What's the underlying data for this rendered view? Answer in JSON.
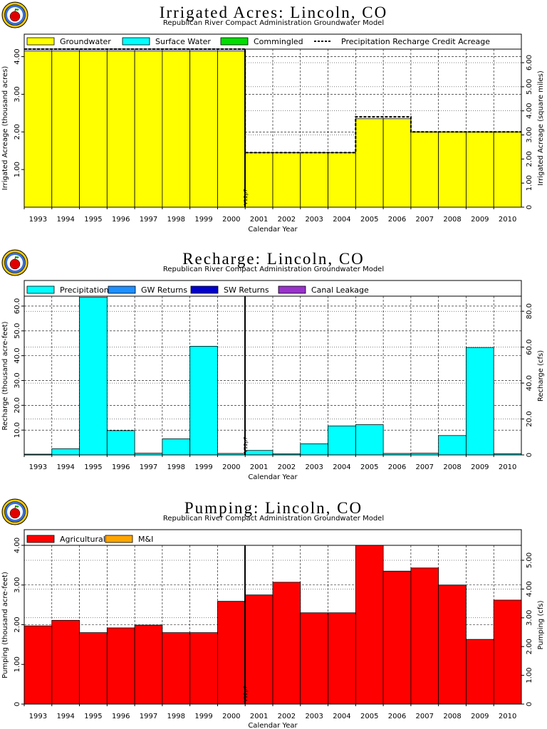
{
  "panels": [
    {
      "title": "Irrigated Acres: Lincoln, CO",
      "subtitle": "Republican River Compact Administration Groundwater Model",
      "marker_label": "V12p7"
    },
    {
      "title": "Recharge: Lincoln, CO",
      "subtitle": "Republican River Compact Administration Groundwater Model",
      "marker_label": "V12p7"
    },
    {
      "title": "Pumping: Lincoln, CO",
      "subtitle": "Republican River Compact Administration Groundwater Model",
      "marker_label": "V12p7"
    }
  ],
  "chart_data": [
    {
      "type": "bar",
      "stacked": true,
      "categories": [
        "1993",
        "1994",
        "1995",
        "1996",
        "1997",
        "1998",
        "1999",
        "2000",
        "2001",
        "2002",
        "2003",
        "2004",
        "2005",
        "2006",
        "2007",
        "2008",
        "2009",
        "2010"
      ],
      "series": [
        {
          "name": "Groundwater",
          "color": "#ffff00",
          "values": [
            4.15,
            4.15,
            4.15,
            4.15,
            4.15,
            4.15,
            4.15,
            4.15,
            1.45,
            1.45,
            1.45,
            1.45,
            2.35,
            2.35,
            2.0,
            2.0,
            2.0,
            2.0
          ]
        },
        {
          "name": "Surface Water",
          "color": "#00ffff",
          "values": [
            0,
            0,
            0,
            0,
            0,
            0,
            0,
            0,
            0,
            0,
            0,
            0,
            0,
            0,
            0,
            0,
            0,
            0
          ]
        },
        {
          "name": "Commingled",
          "color": "#00dd00",
          "values": [
            0,
            0,
            0,
            0,
            0,
            0,
            0,
            0,
            0,
            0,
            0,
            0,
            0,
            0,
            0,
            0,
            0,
            0
          ]
        }
      ],
      "line_series": {
        "name": "Precipitation Recharge Credit Acreage",
        "style": "dashed",
        "values": [
          4.2,
          4.2,
          4.2,
          4.2,
          4.2,
          4.2,
          4.2,
          4.2,
          1.45,
          1.45,
          1.45,
          1.45,
          2.4,
          2.4,
          2.0,
          2.0,
          2.0,
          2.0
        ]
      },
      "xlabel": "Calendar Year",
      "ylabel": "Irrigated Acreage (thousand acres)",
      "y2label": "Irrigated Acreage (square miles)",
      "ylim": [
        0,
        4.2
      ],
      "yticks": [
        "1.00",
        "2.00",
        "3.00",
        "4.00"
      ],
      "yticks_values": [
        1,
        2,
        3,
        4
      ],
      "y2lim": [
        0,
        6.5625
      ],
      "y2ticks": [
        "0",
        "1.00",
        "2.00",
        "3.00",
        "4.00",
        "5.00",
        "6.00"
      ],
      "y2ticks_values": [
        0,
        1,
        2,
        3,
        4,
        5,
        6
      ],
      "grid": true,
      "legend_position": "top"
    },
    {
      "type": "bar",
      "stacked": true,
      "categories": [
        "1993",
        "1994",
        "1995",
        "1996",
        "1997",
        "1998",
        "1999",
        "2000",
        "2001",
        "2002",
        "2003",
        "2004",
        "2005",
        "2006",
        "2007",
        "2008",
        "2009",
        "2010"
      ],
      "series": [
        {
          "name": "Precipitation",
          "color": "#00ffff",
          "values": [
            0.3,
            2.5,
            63.5,
            9.8,
            0.7,
            6.5,
            43.8,
            0.6,
            1.8,
            0.4,
            4.5,
            11.7,
            12.2,
            0.6,
            0.7,
            7.8,
            43.3,
            0.5
          ]
        },
        {
          "name": "GW Returns",
          "color": "#1e90ff",
          "values": [
            0,
            0,
            0,
            0,
            0,
            0,
            0,
            0,
            0,
            0,
            0,
            0,
            0,
            0,
            0,
            0,
            0,
            0
          ]
        },
        {
          "name": "SW Returns",
          "color": "#0000cc",
          "values": [
            0,
            0,
            0,
            0,
            0,
            0,
            0,
            0,
            0,
            0,
            0,
            0,
            0,
            0,
            0,
            0,
            0,
            0
          ]
        },
        {
          "name": "Canal Leakage",
          "color": "#9932cc",
          "values": [
            0,
            0,
            0,
            0,
            0,
            0,
            0,
            0,
            0,
            0,
            0,
            0,
            0,
            0,
            0,
            0,
            0,
            0
          ]
        }
      ],
      "xlabel": "Calendar Year",
      "ylabel": "Recharge (thousand acre-feet)",
      "y2label": "Recharge (cfs)",
      "ylim": [
        0,
        64
      ],
      "yticks": [
        "10.0",
        "20.0",
        "30.0",
        "40.0",
        "50.0",
        "60.0"
      ],
      "yticks_values": [
        10,
        20,
        30,
        40,
        50,
        60
      ],
      "y2lim": [
        0,
        88.4
      ],
      "y2ticks": [
        "0",
        "20.0",
        "40.0",
        "60.0",
        "80.0"
      ],
      "y2ticks_values": [
        0,
        20,
        40,
        60,
        80
      ],
      "grid": true,
      "legend_position": "top"
    },
    {
      "type": "bar",
      "stacked": true,
      "categories": [
        "1993",
        "1994",
        "1995",
        "1996",
        "1997",
        "1998",
        "1999",
        "2000",
        "2001",
        "2002",
        "2003",
        "2004",
        "2005",
        "2006",
        "2007",
        "2008",
        "2009",
        "2010"
      ],
      "series": [
        {
          "name": "Agricultural",
          "color": "#ff0000",
          "values": [
            1.97,
            2.11,
            1.8,
            1.92,
            1.99,
            1.8,
            1.8,
            2.59,
            2.75,
            3.07,
            2.3,
            2.3,
            4.0,
            3.35,
            3.43,
            3.0,
            1.63,
            2.62
          ]
        },
        {
          "name": "M&I",
          "color": "#ffa500",
          "values": [
            0,
            0,
            0,
            0,
            0,
            0,
            0,
            0,
            0,
            0,
            0,
            0,
            0,
            0,
            0,
            0,
            0,
            0
          ]
        }
      ],
      "xlabel": "Calendar Year",
      "ylabel": "Pumping (thousand acre-feet)",
      "y2label": "Pumping (cfs)",
      "ylim": [
        0,
        4.0
      ],
      "yticks": [
        "0",
        "1.00",
        "2.00",
        "3.00",
        "4.00"
      ],
      "yticks_values": [
        0,
        1,
        2,
        3,
        4
      ],
      "y2lim": [
        0,
        5.52
      ],
      "y2ticks": [
        "0",
        "1.00",
        "2.00",
        "3.00",
        "4.00",
        "5.00"
      ],
      "y2ticks_values": [
        0,
        1,
        2,
        3,
        4,
        5
      ],
      "grid": true,
      "legend_position": "top"
    }
  ]
}
